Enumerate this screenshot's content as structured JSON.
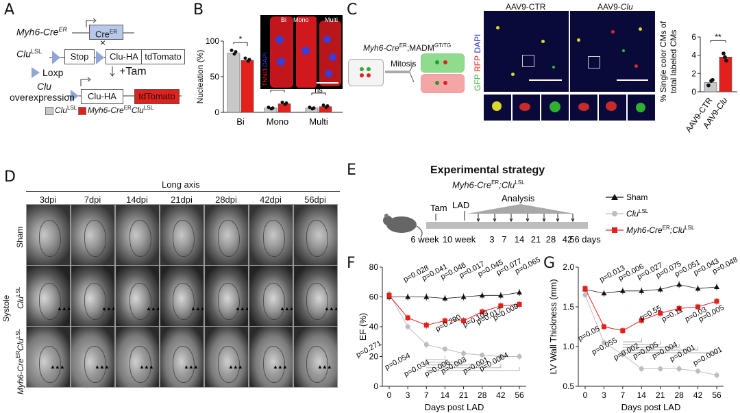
{
  "panels": {
    "a": "A",
    "b": "B",
    "c": "C",
    "d": "D",
    "e": "E",
    "f": "F",
    "g": "G"
  },
  "panel_a": {
    "myh6_label": "Myh6-Cre",
    "myh6_sup": "ER",
    "cre_box": "Cre",
    "cre_sup": "ER",
    "cross": "×",
    "clu_label": "Clu",
    "clu_sup": "LSL",
    "stop": "Stop",
    "clu_ha": "Clu-HA",
    "tdtomato": "tdTomato",
    "loxp": "Loxp",
    "tam": "+Tam",
    "overexp_italic": "Clu",
    "overexp": "overexpression",
    "clu_ha2": "Clu-HA",
    "tdtomato2": "tdTomato",
    "legend_grey": "Clu",
    "legend_grey_sup": "LSL",
    "legend_red": "Myh6-Cre",
    "legend_red_sup": "ER",
    "legend_red2": "Clu",
    "legend_red2_sup": "LSL"
  },
  "panel_b": {
    "micro_labels": {
      "bi": "Bi",
      "mono": "Mono",
      "multi": "Multi"
    },
    "stain_tnni3": "TNNI3",
    "stain_dapi": "DAPI"
  },
  "panel_c": {
    "title": "Myh6-Cre",
    "title_sup": "ER",
    "title2": ";MADM",
    "title2_sup": "GT/TG",
    "mitosis": "Mitosis",
    "col_ctr": "AAV9-CTR",
    "col_clu": "AAV9-",
    "col_clu_it": "Clu",
    "stain_gfp": "GFP",
    "stain_rfp": "RFP",
    "stain_dapi": "DAPI"
  },
  "panel_d": {
    "header": "Long axis",
    "columns": [
      "3dpi",
      "7dpi",
      "14dpi",
      "21dpi",
      "28dpi",
      "42dpi",
      "56dpi"
    ],
    "rows": [
      {
        "label": "Sham",
        "sup": ""
      },
      {
        "label": "Clu",
        "sup": "LSL"
      },
      {
        "label": "Myh6-Cre",
        "sup": "ER",
        "label2": "Clu",
        "sup2": "LSL"
      }
    ],
    "side": "Systole"
  },
  "panel_e": {
    "title": "Experimental strategy",
    "subtitle": "Myh6-Cre",
    "subtitle_sup": "ER",
    "subtitle2": ";Clu",
    "subtitle2_sup": "LSL",
    "tam": "Tam",
    "lad": "LAD",
    "analysis": "Analysis",
    "timeline": [
      "6 week",
      "10 week",
      "3",
      "7",
      "14",
      "21",
      "28",
      "42",
      "56 days"
    ],
    "legend": [
      {
        "name": "Sham",
        "sup": ""
      },
      {
        "name": "Clu",
        "sup": "LSL"
      },
      {
        "name": "Myh6-Cre",
        "sup": "ER",
        "name2": ";Clu",
        "sup2": "LSL"
      }
    ]
  },
  "colors": {
    "grey": "#c8c8c8",
    "red": "#e3211c",
    "sham": "#111111",
    "clu_series": "#bdbdbd",
    "myh_series": "#e3211c"
  },
  "chart_data": [
    {
      "id": "B",
      "type": "bar",
      "ylabel": "Nucleation (%)",
      "ylim": [
        0,
        100
      ],
      "yticks": [
        0,
        50,
        100
      ],
      "categories": [
        "Bi",
        "Mono",
        "Multi"
      ],
      "series": [
        {
          "name": "Clu LSL",
          "values": [
            83,
            6,
            6
          ]
        },
        {
          "name": "Myh6-Cre ER Clu LSL",
          "values": [
            73,
            12,
            8
          ]
        }
      ],
      "significance": [
        "*",
        "**",
        "ns"
      ]
    },
    {
      "id": "C",
      "type": "bar",
      "ylabel": "% Single color CMs of total labeled CMs",
      "ylim": [
        0,
        6
      ],
      "yticks": [
        0,
        2,
        4,
        6
      ],
      "categories": [
        "AAV9-CTR",
        "AAV9-Clu"
      ],
      "values": [
        1.0,
        3.8
      ],
      "significance": "**"
    },
    {
      "id": "F",
      "type": "line",
      "ylabel": "EF (%)",
      "xlabel": "Days post LAD",
      "ylim": [
        0,
        80
      ],
      "yticks": [
        0,
        20,
        40,
        60,
        80
      ],
      "x": [
        0,
        3,
        7,
        14,
        21,
        28,
        42,
        56
      ],
      "series": [
        {
          "name": "Sham",
          "values": [
            60,
            60,
            60,
            59,
            60,
            61,
            61,
            63
          ]
        },
        {
          "name": "Clu LSL",
          "values": [
            62,
            40,
            28,
            25,
            22,
            21,
            20,
            20
          ]
        },
        {
          "name": "Myh6-Cre ER;Clu LSL",
          "values": [
            61,
            46,
            41,
            44,
            44,
            50,
            54,
            55
          ]
        }
      ],
      "pvals_top": [
        "p=0.028",
        "p=0.041",
        "p=0.046",
        "p=0.017",
        "p=0.045",
        "p=0.077",
        "p=0.065"
      ],
      "pvals_mid": [
        "p=0.290",
        "p=0.103",
        "p=0.017",
        "p=0.009"
      ],
      "pvals_bottom": [
        "p=0.271",
        "p=0.054",
        "p=0.034",
        "p=0.006",
        "p=0.003",
        "p=0.001",
        "p=0.0004"
      ]
    },
    {
      "id": "G",
      "type": "line",
      "ylabel": "LV Wall Thickness (mm)",
      "xlabel": "Days post LAD",
      "ylim": [
        0.5,
        2.0
      ],
      "yticks": [
        0.5,
        1.0,
        1.5,
        2.0
      ],
      "x": [
        0,
        3,
        7,
        14,
        21,
        28,
        42,
        56
      ],
      "series": [
        {
          "name": "Sham",
          "values": [
            1.72,
            1.67,
            1.7,
            1.7,
            1.72,
            1.78,
            1.73,
            1.75
          ]
        },
        {
          "name": "Clu LSL",
          "values": [
            1.65,
            1.05,
            0.9,
            0.72,
            0.72,
            0.72,
            0.69,
            0.64
          ]
        },
        {
          "name": "Myh6-Cre ER;Clu LSL",
          "values": [
            1.73,
            1.25,
            1.2,
            1.33,
            1.42,
            1.48,
            1.5,
            1.57
          ]
        }
      ],
      "pvals_top": [
        "p=0.013",
        "p=0.006",
        "p=0.027",
        "p=0.075",
        "p=0.051",
        "p=0.043",
        "p=0.048"
      ],
      "pvals_mid": [
        "p=0.55",
        "p=0.11",
        "p=0.03",
        "p=0.005"
      ],
      "pvals_bottom": [
        "p=0.05",
        "p=0.055",
        "p=0.002",
        "p=0.005",
        "p=0.004",
        "p=0.001",
        "p=0.0001"
      ]
    }
  ]
}
